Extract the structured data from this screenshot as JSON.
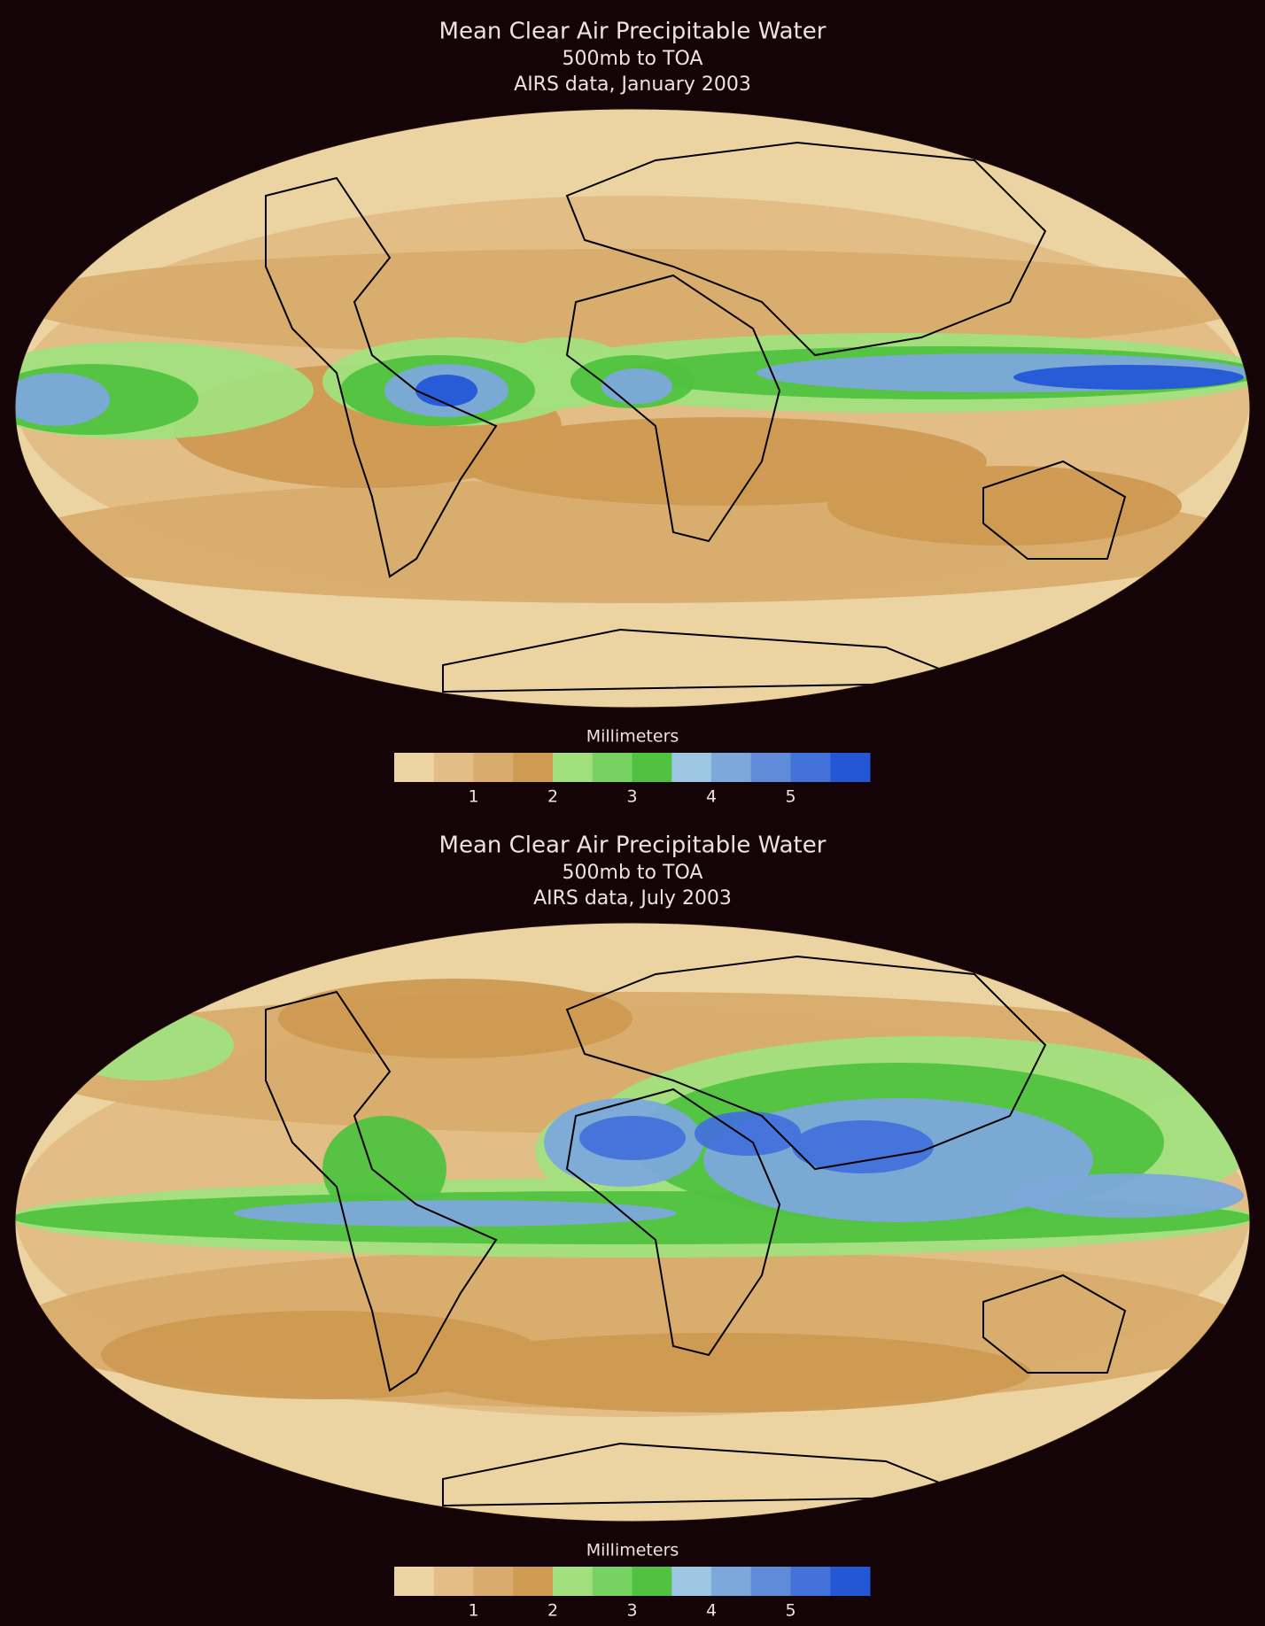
{
  "panels": [
    {
      "title": "Mean Clear Air Precipitable Water",
      "subtitle": "500mb to TOA",
      "caption": "AIRS data, January 2003",
      "colorbar": {
        "label": "Millimeters",
        "lim": [
          0,
          6
        ],
        "ticks": [
          1,
          2,
          3,
          4,
          5
        ],
        "colors": [
          "#ecd4a2",
          "#e2be86",
          "#d8ac6c",
          "#cf9a52",
          "#a2e07e",
          "#78d262",
          "#50c240",
          "#9cc6e2",
          "#7ca8dc",
          "#5f8bd8",
          "#4272da",
          "#2456d6"
        ]
      }
    },
    {
      "title": "Mean Clear Air Precipitable Water",
      "subtitle": "500mb to TOA",
      "caption": "AIRS data, July 2003",
      "colorbar": {
        "label": "Millimeters",
        "lim": [
          0,
          6
        ],
        "ticks": [
          1,
          2,
          3,
          4,
          5
        ],
        "colors": [
          "#ecd4a2",
          "#e2be86",
          "#d8ac6c",
          "#cf9a52",
          "#a2e07e",
          "#78d262",
          "#50c240",
          "#9cc6e2",
          "#7ca8dc",
          "#5f8bd8",
          "#4272da",
          "#2456d6"
        ]
      }
    }
  ]
}
